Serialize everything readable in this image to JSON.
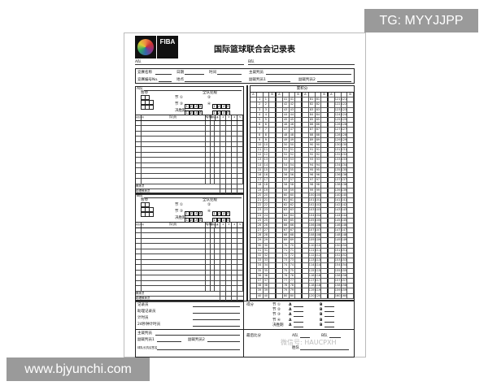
{
  "watermarks": {
    "top_right": "TG: MYYJJPP",
    "bottom_left": "www.bjyunchi.com",
    "wechat": "微信号: HAUCPXH"
  },
  "header": {
    "logo_text": "FIBA",
    "title": "国际篮球联合会记录表",
    "team_a": "A队",
    "team_b": "B队"
  },
  "info": {
    "competition": "竞赛名称",
    "date": "日期",
    "time": "时间",
    "game_no": "竞赛编号No.",
    "place": "地点",
    "referee": "主裁判员",
    "umpire1": "副裁判员1",
    "umpire2": "副裁判员2"
  },
  "teams": [
    {
      "name": "A队",
      "timeouts": "暂停",
      "team_fouls": "全队犯规",
      "period12": "节 ①",
      "period2": "②",
      "period34": "节 ③",
      "period4": "④",
      "overtime": "决胜期",
      "foul_nums": [
        "1",
        "2",
        "3",
        "4"
      ],
      "col_license": "执照号码",
      "col_player": "队员",
      "col_no": "号码",
      "col_in": "进场队员",
      "col_fouls": "犯规",
      "foul_cols": [
        "1",
        "2",
        "3",
        "4",
        "5"
      ],
      "coach": "教练员",
      "asst_coach": "助理教练员"
    },
    {
      "name": "B队",
      "timeouts": "暂停",
      "team_fouls": "全队犯规",
      "period12": "节 ①",
      "period2": "②",
      "period34": "节 ③",
      "period4": "④",
      "overtime": "决胜期",
      "foul_nums": [
        "1",
        "2",
        "3",
        "4"
      ],
      "col_license": "执照号码",
      "col_player": "队员",
      "col_no": "号码",
      "col_in": "进场队员",
      "col_fouls": "犯规",
      "foul_cols": [
        "1",
        "2",
        "3",
        "4",
        "5"
      ],
      "coach": "教练员",
      "asst_coach": "助理教练员"
    }
  ],
  "running_score": {
    "title": "累积分",
    "col_a": "A",
    "col_b": "B",
    "group_starts": [
      1,
      41,
      81,
      121
    ],
    "rows": 40
  },
  "officials": {
    "scorer": "记录员",
    "asst_scorer": "助理记录员",
    "timer": "计时员",
    "shot_clock": "24秒钟计时员",
    "referee": "主裁判员",
    "umpire1": "副裁判员1",
    "umpire2": "副裁判员2",
    "captain": "球队长抗议签名"
  },
  "scores": {
    "label": "得分",
    "periods": [
      "节 ①",
      "节 ②",
      "节 ③",
      "节 ④",
      "决胜期"
    ],
    "a": "A",
    "b": "B",
    "final_label": "最后比分",
    "final_a": "A队",
    "final_b": "B队",
    "winner": "胜队"
  }
}
